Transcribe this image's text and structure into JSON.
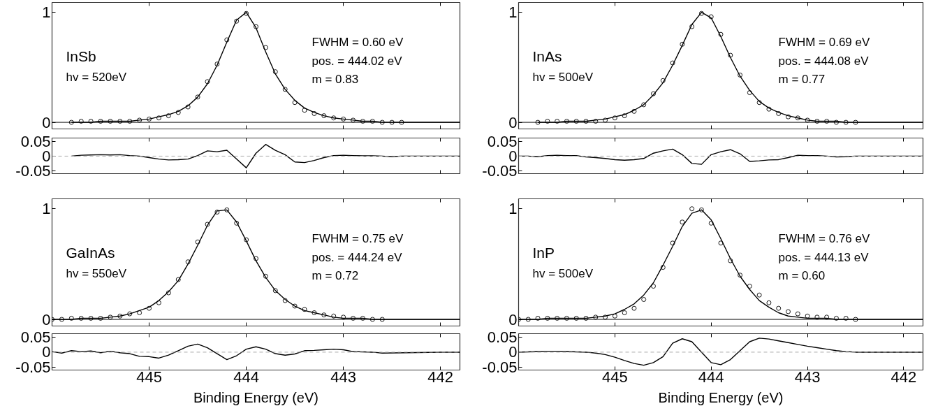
{
  "chart_data": [
    {
      "type": "scatter",
      "annotations": [
        "InSb",
        "hv = 520eV",
        "FWHM = 0.60 eV",
        "pos. = 444.02 eV",
        "m = 0.83"
      ],
      "xlim": [
        446,
        441.8
      ],
      "xticks": [
        445,
        444,
        443,
        442
      ],
      "ylim": [
        -0.06,
        1.09
      ],
      "yticks": [
        0,
        1
      ],
      "tick_labels": "y",
      "ref_lines": [
        {
          "axis": "y",
          "value": 0,
          "color": "#000000"
        }
      ],
      "series": [
        {
          "marker": "circle",
          "color": "#000000",
          "x": [
            445.8,
            445.7,
            445.6,
            445.5,
            445.4,
            445.3,
            445.2,
            445.1,
            445.0,
            444.9,
            444.8,
            444.7,
            444.6,
            444.5,
            444.4,
            444.3,
            444.2,
            444.1,
            444.0,
            443.9,
            443.8,
            443.7,
            443.6,
            443.5,
            443.4,
            443.3,
            443.2,
            443.1,
            443.0,
            442.9,
            442.8,
            442.7,
            442.6,
            442.5,
            442.4
          ],
          "values": [
            0.0,
            0.01,
            0.01,
            0.01,
            0.01,
            0.01,
            0.01,
            0.02,
            0.03,
            0.04,
            0.06,
            0.09,
            0.14,
            0.23,
            0.37,
            0.53,
            0.75,
            0.92,
            0.99,
            0.87,
            0.68,
            0.46,
            0.3,
            0.18,
            0.11,
            0.08,
            0.06,
            0.04,
            0.03,
            0.02,
            0.01,
            0.01,
            0.0,
            0.0,
            0.0
          ]
        },
        {
          "type": "line",
          "color": "#000000",
          "x": [
            445.8,
            445.7,
            445.6,
            445.5,
            445.4,
            445.3,
            445.2,
            445.1,
            445.0,
            444.9,
            444.8,
            444.7,
            444.6,
            444.5,
            444.4,
            444.3,
            444.2,
            444.1,
            444.0,
            443.9,
            443.8,
            443.7,
            443.6,
            443.5,
            443.4,
            443.3,
            443.2,
            443.1,
            443.0,
            442.9,
            442.8,
            442.7,
            442.6,
            442.5,
            442.4,
            442.0,
            441.8
          ],
          "values": [
            0.0,
            0.0,
            0.0,
            0.01,
            0.01,
            0.01,
            0.01,
            0.02,
            0.03,
            0.05,
            0.07,
            0.1,
            0.15,
            0.23,
            0.35,
            0.52,
            0.73,
            0.93,
            1.0,
            0.86,
            0.64,
            0.44,
            0.3,
            0.2,
            0.13,
            0.09,
            0.06,
            0.04,
            0.03,
            0.02,
            0.01,
            0.01,
            0.0,
            0.0,
            0.0,
            0,
            0
          ]
        }
      ]
    },
    {
      "type": "scatter",
      "annotations": [
        "InAs",
        "hv = 500eV",
        "FWHM = 0.69 eV",
        "pos. = 444.08 eV",
        "m = 0.77"
      ],
      "xlim": [
        446,
        441.8
      ],
      "xticks": [
        445,
        444,
        443,
        442
      ],
      "ylim": [
        -0.06,
        1.09
      ],
      "yticks": [
        0,
        1
      ],
      "tick_labels": "y",
      "ref_lines": [
        {
          "axis": "y",
          "value": 0,
          "color": "#000000"
        }
      ],
      "series": [
        {
          "marker": "circle",
          "color": "#000000",
          "x": [
            445.8,
            445.7,
            445.6,
            445.5,
            445.4,
            445.3,
            445.2,
            445.1,
            445.0,
            444.9,
            444.8,
            444.7,
            444.6,
            444.5,
            444.4,
            444.3,
            444.2,
            444.1,
            444.0,
            443.9,
            443.8,
            443.7,
            443.6,
            443.5,
            443.4,
            443.3,
            443.2,
            443.1,
            443.0,
            442.9,
            442.8,
            442.7,
            442.6,
            442.5
          ],
          "values": [
            0.0,
            0.01,
            0.01,
            0.01,
            0.01,
            0.01,
            0.01,
            0.02,
            0.04,
            0.06,
            0.1,
            0.16,
            0.26,
            0.38,
            0.54,
            0.71,
            0.87,
            0.99,
            0.96,
            0.8,
            0.61,
            0.43,
            0.27,
            0.18,
            0.12,
            0.08,
            0.05,
            0.04,
            0.02,
            0.01,
            0.01,
            0.0,
            0.0,
            0.0
          ]
        },
        {
          "type": "line",
          "color": "#000000",
          "x": [
            445.8,
            445.7,
            445.6,
            445.5,
            445.4,
            445.3,
            445.2,
            445.1,
            445.0,
            444.9,
            444.8,
            444.7,
            444.6,
            444.5,
            444.4,
            444.3,
            444.2,
            444.1,
            444.0,
            443.9,
            443.8,
            443.7,
            443.6,
            443.5,
            443.4,
            443.3,
            443.2,
            443.1,
            443.0,
            442.9,
            442.8,
            442.7,
            442.6,
            442.5,
            442.0,
            441.8
          ],
          "values": [
            0.0,
            0.0,
            0.0,
            0.01,
            0.01,
            0.01,
            0.02,
            0.03,
            0.05,
            0.07,
            0.11,
            0.16,
            0.25,
            0.36,
            0.52,
            0.7,
            0.89,
            1.0,
            0.95,
            0.78,
            0.59,
            0.42,
            0.29,
            0.19,
            0.13,
            0.09,
            0.06,
            0.04,
            0.02,
            0.01,
            0.01,
            0.01,
            0.0,
            0.0,
            0,
            0
          ]
        }
      ]
    },
    {
      "type": "line",
      "xlim": [
        446,
        441.8
      ],
      "xticks": [
        445,
        444,
        443,
        442
      ],
      "ylim": [
        -0.06,
        0.062
      ],
      "yticks": [
        -0.05,
        0,
        0.05
      ],
      "tick_labels": "y",
      "ref_lines": [
        {
          "axis": "y",
          "value": 0,
          "color": "#aaaaaa",
          "line_style": "dashed"
        }
      ],
      "series": [
        {
          "color": "#000000",
          "x": [
            445.8,
            445.7,
            445.6,
            445.5,
            445.4,
            445.3,
            445.2,
            445.1,
            445.0,
            444.9,
            444.8,
            444.7,
            444.6,
            444.5,
            444.4,
            444.3,
            444.2,
            444.1,
            444.0,
            443.9,
            443.8,
            443.7,
            443.6,
            443.5,
            443.4,
            443.3,
            443.2,
            443.1,
            443.0,
            442.9,
            442.8,
            442.7,
            442.6,
            442.5,
            442.4,
            442.0,
            441.8
          ],
          "values": [
            0,
            0.003,
            0.004,
            0.005,
            0.004,
            0.005,
            0.002,
            0,
            -0.005,
            -0.01,
            -0.013,
            -0.012,
            -0.01,
            0.002,
            0.018,
            0.015,
            0.02,
            -0.01,
            -0.04,
            0.01,
            0.04,
            0.02,
            0.005,
            -0.02,
            -0.022,
            -0.015,
            -0.005,
            0.002,
            0.003,
            0.002,
            0.001,
            0.001,
            0,
            -0.002,
            0,
            0,
            0
          ]
        }
      ]
    },
    {
      "type": "line",
      "xlim": [
        446,
        441.8
      ],
      "xticks": [
        445,
        444,
        443,
        442
      ],
      "ylim": [
        -0.06,
        0.062
      ],
      "yticks": [
        -0.05,
        0,
        0.05
      ],
      "tick_labels": "y",
      "ref_lines": [
        {
          "axis": "y",
          "value": 0,
          "color": "#aaaaaa",
          "line_style": "dashed"
        }
      ],
      "series": [
        {
          "color": "#000000",
          "x": [
            446.0,
            445.9,
            445.8,
            445.7,
            445.6,
            445.5,
            445.4,
            445.3,
            445.2,
            445.1,
            445.0,
            444.9,
            444.8,
            444.7,
            444.6,
            444.5,
            444.4,
            444.3,
            444.2,
            444.1,
            444.0,
            443.9,
            443.8,
            443.7,
            443.6,
            443.5,
            443.4,
            443.3,
            443.2,
            443.1,
            443.0,
            442.9,
            442.8,
            442.7,
            442.6,
            442.5,
            442.4,
            442.0,
            441.8
          ],
          "values": [
            0,
            0,
            -0.002,
            0.002,
            0.003,
            0.002,
            0.002,
            -0.003,
            -0.005,
            -0.008,
            -0.012,
            -0.014,
            -0.012,
            -0.008,
            0.01,
            0.018,
            0.024,
            0.005,
            -0.025,
            -0.028,
            0.005,
            0.015,
            0.022,
            0.008,
            -0.018,
            -0.016,
            -0.013,
            -0.012,
            -0.005,
            0.003,
            0.002,
            0.002,
            0,
            -0.003,
            -0.002,
            0,
            0,
            0,
            0
          ]
        }
      ]
    },
    {
      "type": "scatter",
      "annotations": [
        "GaInAs",
        "hv = 550eV",
        "FWHM = 0.75 eV",
        "pos. = 444.24 eV",
        "m = 0.72"
      ],
      "xlim": [
        446,
        441.8
      ],
      "xticks": [
        445,
        444,
        443,
        442
      ],
      "ylim": [
        -0.06,
        1.09
      ],
      "yticks": [
        0,
        1
      ],
      "tick_labels": "y",
      "ref_lines": [
        {
          "axis": "y",
          "value": 0,
          "color": "#000000"
        }
      ],
      "series": [
        {
          "marker": "circle",
          "color": "#000000",
          "x": [
            446.0,
            445.9,
            445.8,
            445.7,
            445.6,
            445.5,
            445.4,
            445.3,
            445.2,
            445.1,
            445.0,
            444.9,
            444.8,
            444.7,
            444.6,
            444.5,
            444.4,
            444.3,
            444.2,
            444.1,
            444.0,
            443.9,
            443.8,
            443.7,
            443.6,
            443.5,
            443.4,
            443.3,
            443.2,
            443.1,
            443.0,
            442.9,
            442.8,
            442.7,
            442.6
          ],
          "values": [
            0.0,
            0.0,
            0.01,
            0.01,
            0.01,
            0.01,
            0.02,
            0.03,
            0.05,
            0.06,
            0.1,
            0.15,
            0.24,
            0.36,
            0.52,
            0.7,
            0.86,
            0.97,
            0.99,
            0.87,
            0.72,
            0.55,
            0.39,
            0.26,
            0.17,
            0.12,
            0.09,
            0.06,
            0.04,
            0.03,
            0.02,
            0.01,
            0.01,
            0.0,
            0.0
          ]
        },
        {
          "type": "line",
          "color": "#000000",
          "x": [
            446.0,
            445.9,
            445.8,
            445.7,
            445.6,
            445.5,
            445.4,
            445.3,
            445.2,
            445.1,
            445.0,
            444.9,
            444.8,
            444.7,
            444.6,
            444.5,
            444.4,
            444.3,
            444.2,
            444.1,
            444.0,
            443.9,
            443.8,
            443.7,
            443.6,
            443.5,
            443.4,
            443.3,
            443.2,
            443.1,
            443.0,
            442.9,
            442.8,
            442.7,
            442.6,
            442.0,
            441.8
          ],
          "values": [
            0.0,
            0.0,
            0.0,
            0.01,
            0.01,
            0.01,
            0.02,
            0.03,
            0.05,
            0.08,
            0.11,
            0.17,
            0.25,
            0.35,
            0.5,
            0.67,
            0.85,
            0.98,
            0.99,
            0.88,
            0.71,
            0.53,
            0.38,
            0.26,
            0.18,
            0.12,
            0.08,
            0.06,
            0.04,
            0.02,
            0.01,
            0.01,
            0.01,
            0.0,
            0.0,
            0,
            0
          ]
        }
      ]
    },
    {
      "type": "scatter",
      "annotations": [
        "InP",
        "hv = 500eV",
        "FWHM = 0.76 eV",
        "pos. = 444.13 eV",
        "m = 0.60"
      ],
      "xlim": [
        446,
        441.8
      ],
      "xticks": [
        445,
        444,
        443,
        442
      ],
      "ylim": [
        -0.06,
        1.09
      ],
      "yticks": [
        0,
        1
      ],
      "tick_labels": "y",
      "ref_lines": [
        {
          "axis": "y",
          "value": 0,
          "color": "#000000"
        }
      ],
      "series": [
        {
          "marker": "circle",
          "color": "#000000",
          "x": [
            446.0,
            445.9,
            445.8,
            445.7,
            445.6,
            445.5,
            445.4,
            445.3,
            445.2,
            445.1,
            445.0,
            444.9,
            444.8,
            444.7,
            444.6,
            444.5,
            444.4,
            444.3,
            444.2,
            444.1,
            444.0,
            443.9,
            443.8,
            443.7,
            443.6,
            443.5,
            443.4,
            443.3,
            443.2,
            443.1,
            443.0,
            442.9,
            442.8,
            442.7,
            442.6,
            442.5
          ],
          "values": [
            0.0,
            0.0,
            0.01,
            0.01,
            0.01,
            0.01,
            0.01,
            0.01,
            0.02,
            0.02,
            0.03,
            0.06,
            0.1,
            0.18,
            0.3,
            0.47,
            0.69,
            0.88,
            1.0,
            0.99,
            0.87,
            0.69,
            0.53,
            0.4,
            0.3,
            0.22,
            0.15,
            0.1,
            0.07,
            0.05,
            0.03,
            0.02,
            0.02,
            0.01,
            0.01,
            0.0
          ]
        },
        {
          "type": "line",
          "color": "#000000",
          "x": [
            446.0,
            445.9,
            445.8,
            445.7,
            445.6,
            445.5,
            445.4,
            445.3,
            445.2,
            445.1,
            445.0,
            444.9,
            444.8,
            444.7,
            444.6,
            444.5,
            444.4,
            444.3,
            444.2,
            444.1,
            444.0,
            443.9,
            443.8,
            443.7,
            443.6,
            443.5,
            443.4,
            443.3,
            443.2,
            443.1,
            443.0,
            442.9,
            442.8,
            442.7,
            442.6,
            442.5,
            442.0,
            441.8
          ],
          "values": [
            0.0,
            0.0,
            0.0,
            0.01,
            0.01,
            0.01,
            0.01,
            0.01,
            0.02,
            0.03,
            0.05,
            0.09,
            0.14,
            0.22,
            0.33,
            0.49,
            0.66,
            0.84,
            0.96,
            0.99,
            0.9,
            0.73,
            0.55,
            0.39,
            0.27,
            0.17,
            0.11,
            0.06,
            0.03,
            0.02,
            0.01,
            0.01,
            0.01,
            0.0,
            0.0,
            0.0,
            0,
            0
          ]
        }
      ]
    },
    {
      "type": "line",
      "xlabel": "Binding Energy (eV)",
      "xlim": [
        446,
        441.8
      ],
      "xticks": [
        445,
        444,
        443,
        442
      ],
      "ylim": [
        -0.06,
        0.062
      ],
      "yticks": [
        -0.05,
        0,
        0.05
      ],
      "ref_lines": [
        {
          "axis": "y",
          "value": 0,
          "color": "#aaaaaa",
          "line_style": "dashed"
        }
      ],
      "series": [
        {
          "color": "#000000",
          "x": [
            446.0,
            445.9,
            445.8,
            445.7,
            445.6,
            445.5,
            445.4,
            445.3,
            445.2,
            445.1,
            445.0,
            444.9,
            444.8,
            444.7,
            444.6,
            444.5,
            444.4,
            444.3,
            444.2,
            444.1,
            444.0,
            443.9,
            443.8,
            443.7,
            443.6,
            443.5,
            443.4,
            443.3,
            443.2,
            443.1,
            443.0,
            442.9,
            442.8,
            442.7,
            442.6,
            442.0,
            441.8
          ],
          "values": [
            0.002,
            -0.003,
            0.005,
            0.002,
            0.004,
            -0.002,
            0.003,
            -0.002,
            -0.005,
            -0.014,
            -0.015,
            -0.02,
            -0.01,
            0.005,
            0.02,
            0.027,
            0.015,
            -0.005,
            -0.025,
            -0.012,
            0.01,
            0.018,
            0.01,
            -0.005,
            -0.01,
            -0.006,
            0.005,
            0.006,
            0.008,
            0.01,
            0.008,
            0.002,
            0.001,
            0,
            -0.003,
            0,
            0
          ]
        }
      ]
    },
    {
      "type": "line",
      "xlabel": "Binding Energy (eV)",
      "xlim": [
        446,
        441.8
      ],
      "xticks": [
        445,
        444,
        443,
        442
      ],
      "ylim": [
        -0.06,
        0.062
      ],
      "yticks": [
        -0.05,
        0,
        0.05
      ],
      "ref_lines": [
        {
          "axis": "y",
          "value": 0,
          "color": "#aaaaaa",
          "line_style": "dashed"
        }
      ],
      "series": [
        {
          "color": "#000000",
          "x": [
            446.0,
            445.9,
            445.8,
            445.7,
            445.6,
            445.5,
            445.4,
            445.3,
            445.2,
            445.1,
            445.0,
            444.9,
            444.8,
            444.7,
            444.6,
            444.5,
            444.4,
            444.3,
            444.2,
            444.1,
            444.0,
            443.9,
            443.8,
            443.7,
            443.6,
            443.5,
            443.4,
            443.3,
            443.2,
            443.1,
            443.0,
            442.9,
            442.8,
            442.7,
            442.6,
            442.5,
            442.4,
            442.0,
            441.8
          ],
          "values": [
            0,
            0.001,
            0.002,
            0.003,
            0.003,
            0.002,
            0.001,
            0,
            -0.003,
            -0.008,
            -0.017,
            -0.028,
            -0.038,
            -0.044,
            -0.035,
            -0.015,
            0.03,
            0.045,
            0.035,
            0,
            -0.035,
            -0.042,
            -0.025,
            0.005,
            0.035,
            0.047,
            0.044,
            0.038,
            0.032,
            0.026,
            0.02,
            0.015,
            0.01,
            0.005,
            0.002,
            0,
            0,
            0,
            0
          ]
        }
      ]
    }
  ]
}
